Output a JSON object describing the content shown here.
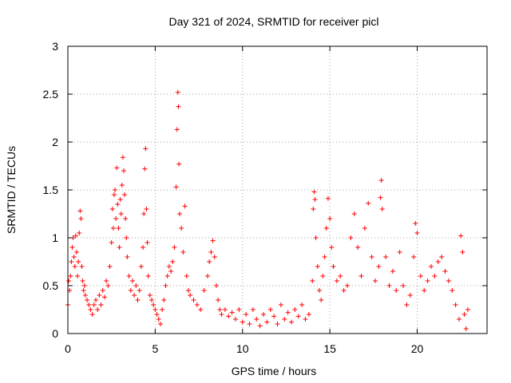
{
  "chart_data": {
    "type": "scatter",
    "title": "Day 321 of 2024, SRMTID for receiver picl",
    "xlabel": "GPS time / hours",
    "ylabel": "SRMTID / TECUs",
    "xlim": [
      0,
      24
    ],
    "ylim": [
      0,
      3
    ],
    "xticks": [
      0,
      5,
      10,
      15,
      20
    ],
    "xtick_labels": [
      "0",
      "5",
      "10",
      "15",
      "20"
    ],
    "yticks": [
      0,
      0.5,
      1,
      1.5,
      2,
      2.5,
      3
    ],
    "ytick_labels": [
      "0",
      "0.5",
      "1",
      "1.5",
      "2",
      "2.5",
      "3"
    ],
    "grid": true,
    "marker": "+",
    "series": [
      {
        "name": "SRMTID",
        "color": "#ff0000",
        "points": [
          [
            0.0,
            0.3
          ],
          [
            0.05,
            0.55
          ],
          [
            0.1,
            0.45
          ],
          [
            0.15,
            0.6
          ],
          [
            0.2,
            0.75
          ],
          [
            0.25,
            0.9
          ],
          [
            0.3,
            1.0
          ],
          [
            0.35,
            0.8
          ],
          [
            0.4,
            0.7
          ],
          [
            0.45,
            1.02
          ],
          [
            0.5,
            0.85
          ],
          [
            0.55,
            0.6
          ],
          [
            0.6,
            0.75
          ],
          [
            0.65,
            1.05
          ],
          [
            0.7,
            1.28
          ],
          [
            0.75,
            1.2
          ],
          [
            0.8,
            0.7
          ],
          [
            0.85,
            0.55
          ],
          [
            0.9,
            0.45
          ],
          [
            0.95,
            0.5
          ],
          [
            1.0,
            0.4
          ],
          [
            1.1,
            0.35
          ],
          [
            1.2,
            0.3
          ],
          [
            1.3,
            0.25
          ],
          [
            1.4,
            0.2
          ],
          [
            1.5,
            0.3
          ],
          [
            1.6,
            0.35
          ],
          [
            1.7,
            0.25
          ],
          [
            1.8,
            0.4
          ],
          [
            1.9,
            0.3
          ],
          [
            2.0,
            0.45
          ],
          [
            2.1,
            0.38
          ],
          [
            2.2,
            0.55
          ],
          [
            2.3,
            0.5
          ],
          [
            2.4,
            0.7
          ],
          [
            2.5,
            0.95
          ],
          [
            2.55,
            1.3
          ],
          [
            2.6,
            1.1
          ],
          [
            2.65,
            1.45
          ],
          [
            2.7,
            1.5
          ],
          [
            2.75,
            1.2
          ],
          [
            2.8,
            1.73
          ],
          [
            2.85,
            1.35
          ],
          [
            2.9,
            1.1
          ],
          [
            2.95,
            0.9
          ],
          [
            3.0,
            1.4
          ],
          [
            3.05,
            1.25
          ],
          [
            3.1,
            1.55
          ],
          [
            3.15,
            1.84
          ],
          [
            3.2,
            1.7
          ],
          [
            3.25,
            1.45
          ],
          [
            3.3,
            1.2
          ],
          [
            3.35,
            1.0
          ],
          [
            3.4,
            0.8
          ],
          [
            3.5,
            0.6
          ],
          [
            3.6,
            0.45
          ],
          [
            3.7,
            0.55
          ],
          [
            3.8,
            0.4
          ],
          [
            3.9,
            0.5
          ],
          [
            4.0,
            0.35
          ],
          [
            4.1,
            0.45
          ],
          [
            4.2,
            0.7
          ],
          [
            4.3,
            0.9
          ],
          [
            4.35,
            1.25
          ],
          [
            4.4,
            1.72
          ],
          [
            4.45,
            1.93
          ],
          [
            4.5,
            1.3
          ],
          [
            4.55,
            0.95
          ],
          [
            4.6,
            0.6
          ],
          [
            4.7,
            0.4
          ],
          [
            4.8,
            0.35
          ],
          [
            4.9,
            0.3
          ],
          [
            5.0,
            0.25
          ],
          [
            5.1,
            0.2
          ],
          [
            5.2,
            0.15
          ],
          [
            5.3,
            0.1
          ],
          [
            5.4,
            0.25
          ],
          [
            5.5,
            0.35
          ],
          [
            5.6,
            0.5
          ],
          [
            5.7,
            0.6
          ],
          [
            5.8,
            0.7
          ],
          [
            5.9,
            0.65
          ],
          [
            6.0,
            0.75
          ],
          [
            6.1,
            0.9
          ],
          [
            6.2,
            1.53
          ],
          [
            6.25,
            2.13
          ],
          [
            6.3,
            2.52
          ],
          [
            6.33,
            2.37
          ],
          [
            6.36,
            1.77
          ],
          [
            6.4,
            1.25
          ],
          [
            6.5,
            1.1
          ],
          [
            6.6,
            0.85
          ],
          [
            6.7,
            1.33
          ],
          [
            6.8,
            0.6
          ],
          [
            6.9,
            0.45
          ],
          [
            7.0,
            0.4
          ],
          [
            7.2,
            0.35
          ],
          [
            7.4,
            0.3
          ],
          [
            7.6,
            0.25
          ],
          [
            7.8,
            0.45
          ],
          [
            8.0,
            0.6
          ],
          [
            8.1,
            0.75
          ],
          [
            8.2,
            0.85
          ],
          [
            8.3,
            0.97
          ],
          [
            8.4,
            0.8
          ],
          [
            8.5,
            0.5
          ],
          [
            8.6,
            0.35
          ],
          [
            8.7,
            0.25
          ],
          [
            8.8,
            0.2
          ],
          [
            9.0,
            0.25
          ],
          [
            9.2,
            0.18
          ],
          [
            9.4,
            0.22
          ],
          [
            9.6,
            0.15
          ],
          [
            9.8,
            0.25
          ],
          [
            10.0,
            0.12
          ],
          [
            10.2,
            0.2
          ],
          [
            10.4,
            0.1
          ],
          [
            10.6,
            0.25
          ],
          [
            10.8,
            0.15
          ],
          [
            11.0,
            0.08
          ],
          [
            11.2,
            0.2
          ],
          [
            11.4,
            0.12
          ],
          [
            11.6,
            0.25
          ],
          [
            11.8,
            0.18
          ],
          [
            12.0,
            0.1
          ],
          [
            12.2,
            0.3
          ],
          [
            12.4,
            0.15
          ],
          [
            12.6,
            0.22
          ],
          [
            12.8,
            0.12
          ],
          [
            13.0,
            0.25
          ],
          [
            13.2,
            0.18
          ],
          [
            13.4,
            0.3
          ],
          [
            13.6,
            0.15
          ],
          [
            13.8,
            0.2
          ],
          [
            14.0,
            0.55
          ],
          [
            14.05,
            1.3
          ],
          [
            14.1,
            1.48
          ],
          [
            14.15,
            1.4
          ],
          [
            14.2,
            1.0
          ],
          [
            14.3,
            0.7
          ],
          [
            14.4,
            0.45
          ],
          [
            14.5,
            0.35
          ],
          [
            14.6,
            0.6
          ],
          [
            14.7,
            0.8
          ],
          [
            14.8,
            1.1
          ],
          [
            14.9,
            1.41
          ],
          [
            15.0,
            1.2
          ],
          [
            15.1,
            0.9
          ],
          [
            15.2,
            0.7
          ],
          [
            15.4,
            0.55
          ],
          [
            15.6,
            0.6
          ],
          [
            15.8,
            0.45
          ],
          [
            16.0,
            0.5
          ],
          [
            16.2,
            1.0
          ],
          [
            16.4,
            1.25
          ],
          [
            16.6,
            0.9
          ],
          [
            16.8,
            0.6
          ],
          [
            17.0,
            1.1
          ],
          [
            17.2,
            1.36
          ],
          [
            17.4,
            0.8
          ],
          [
            17.6,
            0.55
          ],
          [
            17.8,
            0.7
          ],
          [
            17.9,
            1.42
          ],
          [
            17.95,
            1.6
          ],
          [
            18.0,
            1.3
          ],
          [
            18.2,
            0.8
          ],
          [
            18.4,
            0.5
          ],
          [
            18.6,
            0.65
          ],
          [
            18.8,
            0.45
          ],
          [
            19.0,
            0.85
          ],
          [
            19.2,
            0.5
          ],
          [
            19.4,
            0.3
          ],
          [
            19.6,
            0.4
          ],
          [
            19.8,
            0.8
          ],
          [
            19.9,
            1.15
          ],
          [
            20.0,
            1.05
          ],
          [
            20.2,
            0.6
          ],
          [
            20.4,
            0.45
          ],
          [
            20.6,
            0.55
          ],
          [
            20.8,
            0.7
          ],
          [
            21.0,
            0.6
          ],
          [
            21.2,
            0.75
          ],
          [
            21.4,
            0.8
          ],
          [
            21.6,
            0.65
          ],
          [
            21.8,
            0.55
          ],
          [
            22.0,
            0.45
          ],
          [
            22.2,
            0.3
          ],
          [
            22.4,
            0.15
          ],
          [
            22.5,
            1.02
          ],
          [
            22.6,
            0.85
          ],
          [
            22.7,
            0.2
          ],
          [
            22.8,
            0.05
          ],
          [
            22.9,
            0.25
          ]
        ]
      }
    ]
  }
}
